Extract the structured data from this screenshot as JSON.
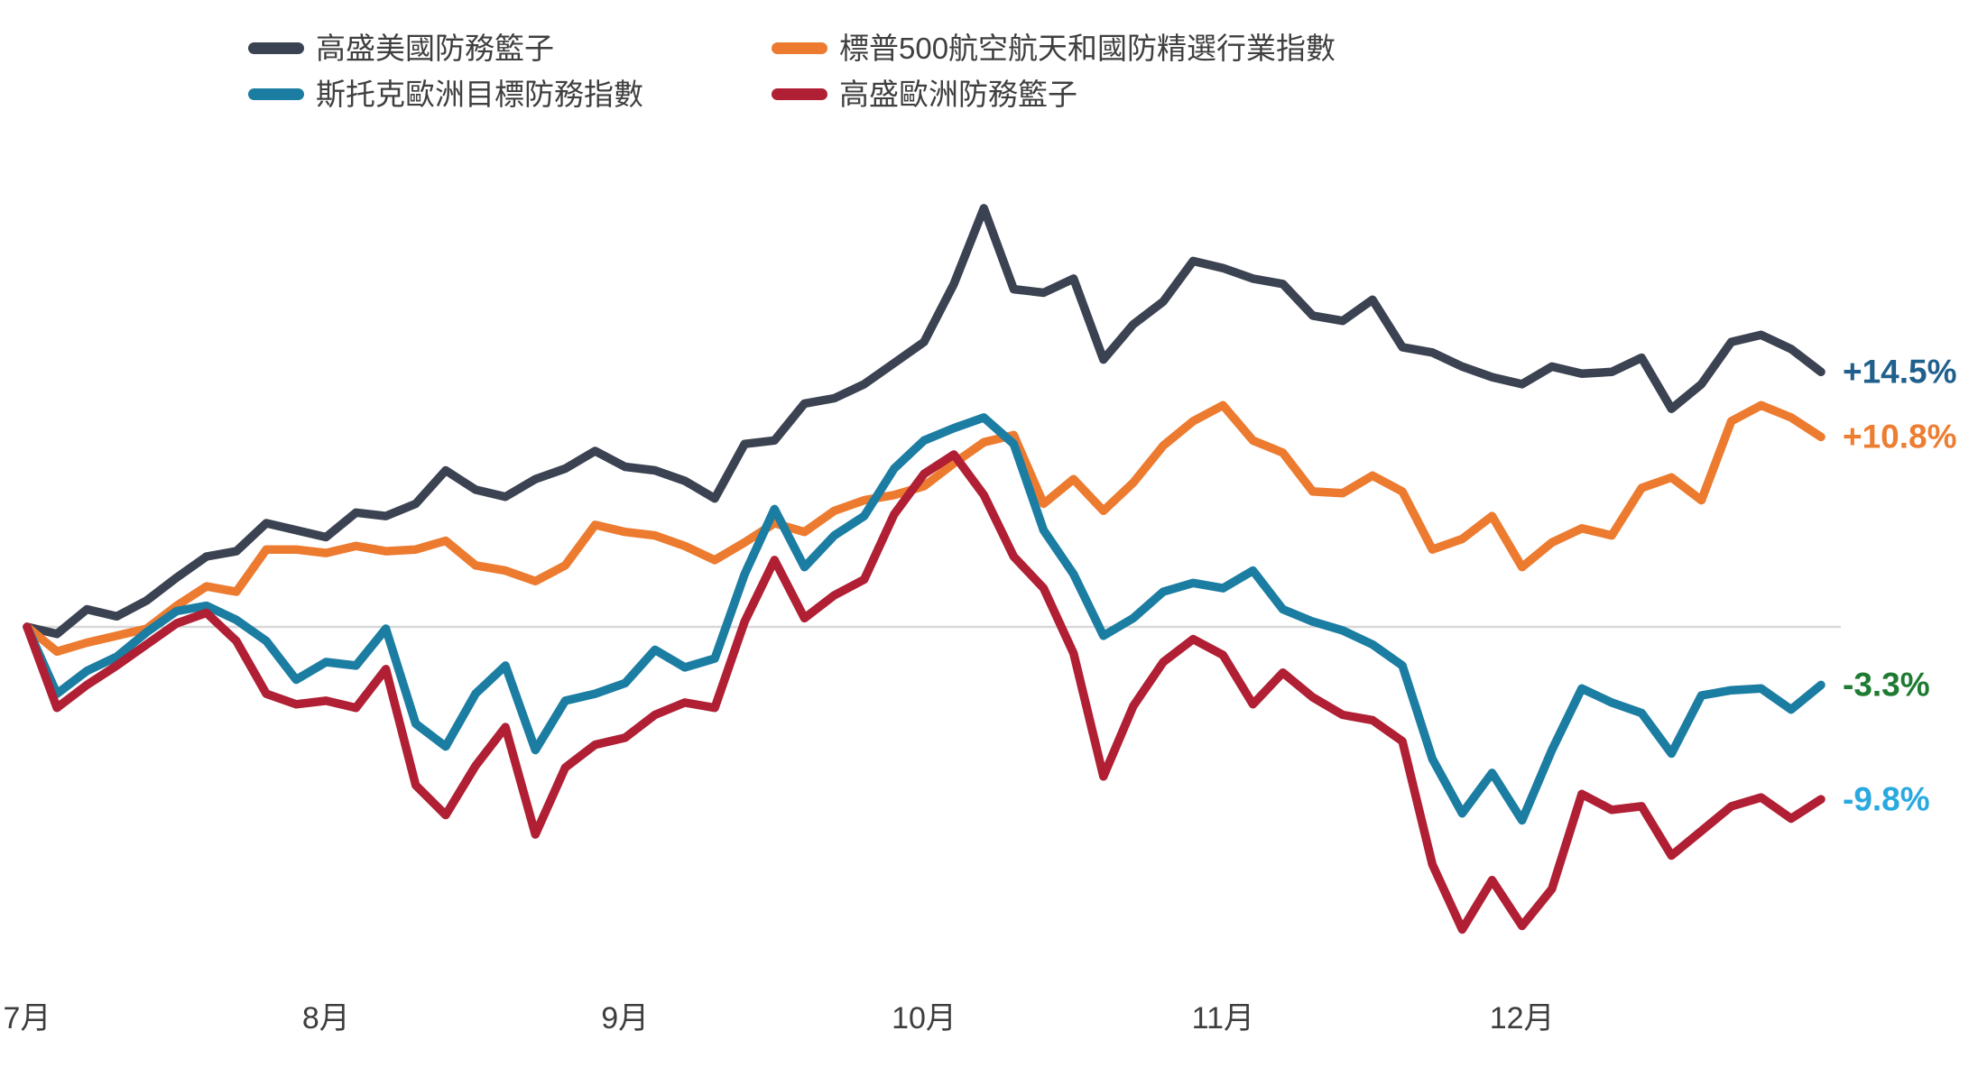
{
  "chart_data": {
    "type": "line",
    "title": "",
    "x_axis": {
      "tick_labels": [
        "7月",
        "8月",
        "9月",
        "10月",
        "11月",
        "12月"
      ],
      "points_per_month": 10,
      "total_points": 61
    },
    "y_axis": {
      "unit": "%",
      "zero_gridline": true,
      "zero_line_color": "#d8d8d8",
      "approx_range": [
        -18,
        24
      ]
    },
    "legend_position": "top",
    "series": [
      {
        "name": "高盛美國防務籃子",
        "color": "#3b4251",
        "end_label": "+14.5%",
        "end_label_color": "#1f618c",
        "values": [
          0,
          -0.4,
          1.0,
          0.6,
          1.5,
          2.8,
          4.0,
          4.3,
          5.9,
          5.5,
          5.1,
          6.5,
          6.3,
          7.0,
          8.9,
          7.8,
          7.4,
          8.4,
          9.0,
          10.0,
          9.1,
          8.9,
          8.3,
          7.3,
          10.4,
          10.6,
          12.7,
          13.0,
          13.8,
          15.0,
          16.2,
          19.5,
          23.8,
          19.2,
          19.0,
          19.8,
          15.2,
          17.2,
          18.5,
          20.8,
          20.4,
          19.8,
          19.5,
          17.7,
          17.4,
          18.6,
          15.9,
          15.6,
          14.8,
          14.2,
          13.8,
          14.8,
          14.4,
          14.5,
          15.3,
          12.4,
          13.8,
          16.2,
          16.6,
          15.8,
          14.5
        ]
      },
      {
        "name": "標普500航空航天和國防精選行業指數",
        "color": "#ec7b30",
        "end_label": "+10.8%",
        "end_label_color": "#ed7d31",
        "values": [
          0,
          -1.4,
          -0.9,
          -0.5,
          -0.1,
          1.2,
          2.3,
          2.0,
          4.4,
          4.4,
          4.2,
          4.6,
          4.3,
          4.4,
          4.9,
          3.5,
          3.2,
          2.6,
          3.5,
          5.8,
          5.4,
          5.2,
          4.6,
          3.8,
          4.8,
          5.9,
          5.4,
          6.6,
          7.2,
          7.5,
          8.0,
          9.3,
          10.5,
          10.9,
          7.0,
          8.4,
          6.6,
          8.2,
          10.3,
          11.7,
          12.6,
          10.6,
          9.9,
          7.7,
          7.6,
          8.6,
          7.7,
          4.4,
          5.0,
          6.3,
          3.4,
          4.8,
          5.6,
          5.2,
          7.9,
          8.5,
          7.2,
          11.7,
          12.6,
          11.9,
          10.8
        ]
      },
      {
        "name": "斯托克歐洲目標防務指數",
        "color": "#1b7da2",
        "end_label": "-3.3%",
        "end_label_color": "#1e7b32",
        "values": [
          0,
          -3.8,
          -2.5,
          -1.7,
          -0.3,
          0.9,
          1.2,
          0.4,
          -0.8,
          -3.0,
          -2.0,
          -2.2,
          -0.1,
          -5.5,
          -6.8,
          -3.8,
          -2.2,
          -7.0,
          -4.2,
          -3.8,
          -3.2,
          -1.3,
          -2.3,
          -1.8,
          3.0,
          6.7,
          3.4,
          5.2,
          6.3,
          9.0,
          10.6,
          11.3,
          11.9,
          10.4,
          5.5,
          3.0,
          -0.5,
          0.5,
          2.0,
          2.5,
          2.2,
          3.2,
          1.0,
          0.3,
          -0.2,
          -1.0,
          -2.2,
          -7.5,
          -10.6,
          -8.3,
          -11.0,
          -7.0,
          -3.5,
          -4.3,
          -4.9,
          -7.2,
          -3.9,
          -3.6,
          -3.5,
          -4.7,
          -3.3
        ]
      },
      {
        "name": "高盛歐洲防務籃子",
        "color": "#b01f33",
        "end_label": "-9.8%",
        "end_label_color": "#29a9e0",
        "values": [
          0,
          -4.6,
          -3.3,
          -2.2,
          -1.0,
          0.2,
          0.8,
          -0.8,
          -3.8,
          -4.4,
          -4.2,
          -4.6,
          -2.4,
          -9.0,
          -10.7,
          -7.9,
          -5.7,
          -11.8,
          -8.0,
          -6.7,
          -6.3,
          -5.0,
          -4.3,
          -4.6,
          0.3,
          3.8,
          0.5,
          1.8,
          2.7,
          6.4,
          8.7,
          9.8,
          7.5,
          4.0,
          2.2,
          -1.5,
          -8.5,
          -4.5,
          -2.0,
          -0.7,
          -1.6,
          -4.4,
          -2.6,
          -4.0,
          -5.0,
          -5.3,
          -6.5,
          -13.5,
          -17.2,
          -14.4,
          -17.0,
          -14.9,
          -9.5,
          -10.4,
          -10.2,
          -13.0,
          -11.6,
          -10.2,
          -9.7,
          -10.9,
          -9.8
        ]
      }
    ]
  }
}
